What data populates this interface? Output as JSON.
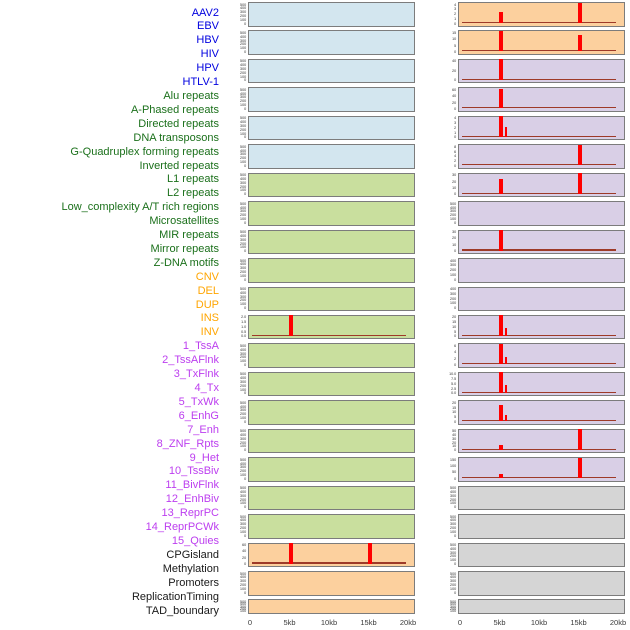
{
  "chart_data": {
    "type": "bar",
    "title": "",
    "xlabel": "",
    "ylabel": "",
    "x_range_kb": [
      0,
      20
    ],
    "x_axis": {
      "ticks": [
        {
          "label": "0",
          "kb": 0
        },
        {
          "label": "5kb",
          "kb": 5
        },
        {
          "label": "10kb",
          "kb": 10
        },
        {
          "label": "15kb",
          "kb": 15
        },
        {
          "label": "20kb",
          "kb": 20
        }
      ]
    },
    "categories": {
      "virus": {
        "label_color": "#0000df",
        "panel_color": "#d3e6ef"
      },
      "repeat": {
        "label_color": "#1b701b",
        "panel_color": "#c9df9e"
      },
      "structural_variant": {
        "label_color": "#ffa500",
        "panel_color": "#fcd09e"
      },
      "chromatin_state": {
        "label_color": "#bc3eef",
        "panel_color": "#d9cfe6"
      },
      "other": {
        "label_color": "#191919",
        "panel_color": "#d5d5d5"
      }
    },
    "style": {
      "spike_color": "#ff0000",
      "baseline_color": "#9e3a28",
      "panel_border_color": "#7c7c7c",
      "tick_text_color": "#3d3d3d"
    },
    "columns": [
      {
        "name": "left",
        "tracks": [
          {
            "label": "AAV2",
            "category": "virus",
            "y_ticks": [
              "500",
              "400",
              "300",
              "200",
              "100",
              "0"
            ],
            "y_max": 500,
            "peaks": []
          },
          {
            "label": "EBV",
            "category": "virus",
            "y_ticks": [
              "500",
              "400",
              "300",
              "200",
              "100",
              "0"
            ],
            "y_max": 500,
            "peaks": []
          },
          {
            "label": "HBV",
            "category": "virus",
            "y_ticks": [
              "500",
              "400",
              "300",
              "200",
              "100",
              "0"
            ],
            "y_max": 500,
            "peaks": []
          },
          {
            "label": "HIV",
            "category": "virus",
            "y_ticks": [
              "500",
              "400",
              "300",
              "200",
              "100",
              "0"
            ],
            "y_max": 500,
            "peaks": []
          },
          {
            "label": "HPV",
            "category": "virus",
            "y_ticks": [
              "500",
              "400",
              "300",
              "200",
              "100",
              "0"
            ],
            "y_max": 500,
            "peaks": []
          },
          {
            "label": "HTLV-1",
            "category": "virus",
            "y_ticks": [
              "500",
              "400",
              "300",
              "200",
              "100",
              "0"
            ],
            "y_max": 500,
            "peaks": []
          },
          {
            "label": "Alu repeats",
            "category": "repeat",
            "y_ticks": [
              "500",
              "400",
              "300",
              "200",
              "100",
              "0"
            ],
            "y_max": 500,
            "peaks": []
          },
          {
            "label": "A-Phased repeats",
            "category": "repeat",
            "y_ticks": [
              "500",
              "400",
              "300",
              "200",
              "100",
              "0"
            ],
            "y_max": 500,
            "peaks": []
          },
          {
            "label": "Directed repeats",
            "category": "repeat",
            "y_ticks": [
              "500",
              "400",
              "300",
              "200",
              "100",
              "0"
            ],
            "y_max": 500,
            "peaks": []
          },
          {
            "label": "DNA transposons",
            "category": "repeat",
            "y_ticks": [
              "500",
              "400",
              "300",
              "200",
              "100",
              "0"
            ],
            "y_max": 500,
            "peaks": []
          },
          {
            "label": "G-Quadruplex forming repeats",
            "category": "repeat",
            "y_ticks": [
              "500",
              "400",
              "300",
              "200",
              "100",
              "0"
            ],
            "y_max": 500,
            "peaks": []
          },
          {
            "label": "Inverted repeats",
            "category": "repeat",
            "y_ticks": [
              "2.0",
              "1.5",
              "1.0",
              "0.5",
              "0.0"
            ],
            "y_max": 2.05,
            "peaks": [
              {
                "kb": 5,
                "value": 2.05,
                "width": 4
              }
            ]
          },
          {
            "label": "L1 repeats",
            "category": "repeat",
            "y_ticks": [
              "500",
              "400",
              "300",
              "200",
              "100",
              "0"
            ],
            "y_max": 500,
            "peaks": []
          },
          {
            "label": "L2 repeats",
            "category": "repeat",
            "y_ticks": [
              "500",
              "400",
              "300",
              "200",
              "100",
              "0"
            ],
            "y_max": 500,
            "peaks": []
          },
          {
            "label": "Low_complexity A/T rich regions",
            "category": "repeat",
            "y_ticks": [
              "500",
              "400",
              "300",
              "200",
              "100",
              "0"
            ],
            "y_max": 500,
            "peaks": []
          },
          {
            "label": "Microsatellites",
            "category": "repeat",
            "y_ticks": [
              "500",
              "400",
              "300",
              "200",
              "100",
              "0"
            ],
            "y_max": 500,
            "peaks": []
          },
          {
            "label": "MIR repeats",
            "category": "repeat",
            "y_ticks": [
              "500",
              "400",
              "300",
              "200",
              "100",
              "0"
            ],
            "y_max": 500,
            "peaks": []
          },
          {
            "label": "Mirror repeats",
            "category": "repeat",
            "y_ticks": [
              "500",
              "400",
              "300",
              "200",
              "100",
              "0"
            ],
            "y_max": 500,
            "peaks": []
          },
          {
            "label": "Z-DNA motifs",
            "category": "repeat",
            "y_ticks": [
              "500",
              "400",
              "300",
              "200",
              "100",
              "0"
            ],
            "y_max": 500,
            "peaks": []
          },
          {
            "label": "CNV",
            "category": "structural_variant",
            "y_ticks": [
              "60",
              "40",
              "20",
              "0"
            ],
            "y_max": 65,
            "peaks": [
              {
                "kb": 5,
                "value": 65,
                "width": 4
              },
              {
                "kb": 15,
                "value": 65,
                "width": 4
              }
            ]
          },
          {
            "label": "DEL",
            "category": "structural_variant",
            "y_ticks": [
              "500",
              "400",
              "300",
              "200",
              "100",
              "0"
            ],
            "y_max": 500,
            "peaks": []
          },
          {
            "label": "DUP",
            "category": "structural_variant",
            "y_ticks": [
              "500",
              "400",
              "300",
              "200",
              "100"
            ],
            "y_max": 500,
            "peaks": []
          }
        ]
      },
      {
        "name": "right",
        "tracks": [
          {
            "label": "INS",
            "category": "structural_variant",
            "y_ticks": [
              "4",
              "3",
              "2",
              "1",
              "0"
            ],
            "y_max": 4.4,
            "peaks": [
              {
                "kb": 5,
                "value": 2.3,
                "width": 4
              },
              {
                "kb": 15,
                "value": 4.4,
                "width": 4
              }
            ]
          },
          {
            "label": "INV",
            "category": "structural_variant",
            "y_ticks": [
              "15",
              "10",
              "5",
              "0"
            ],
            "y_max": 16,
            "peaks": [
              {
                "kb": 5,
                "value": 16,
                "width": 4
              },
              {
                "kb": 15,
                "value": 13,
                "width": 4
              }
            ]
          },
          {
            "label": "1_TssA",
            "category": "chromatin_state",
            "y_ticks": [
              "40",
              "20",
              "0"
            ],
            "y_max": 46,
            "peaks": [
              {
                "kb": 5,
                "value": 46,
                "width": 4
              }
            ]
          },
          {
            "label": "2_TssAFlnk",
            "category": "chromatin_state",
            "y_ticks": [
              "60",
              "40",
              "20",
              "0"
            ],
            "y_max": 66,
            "peaks": [
              {
                "kb": 5,
                "value": 63,
                "width": 4
              }
            ]
          },
          {
            "label": "3_TxFlnk",
            "category": "chromatin_state",
            "y_ticks": [
              "4",
              "3",
              "2",
              "1",
              "0"
            ],
            "y_max": 4.4,
            "peaks": [
              {
                "kb": 5,
                "value": 4.4,
                "width": 4
              },
              {
                "kb": 5.7,
                "value": 2.1,
                "width": 2.5
              }
            ]
          },
          {
            "label": "4_Tx",
            "category": "chromatin_state",
            "y_ticks": [
              "8",
              "6",
              "4",
              "2",
              "0"
            ],
            "y_max": 8.5,
            "peaks": [
              {
                "kb": 15,
                "value": 8.5,
                "width": 4
              }
            ]
          },
          {
            "label": "5_TxWk",
            "category": "chromatin_state",
            "y_ticks": [
              "30",
              "20",
              "10",
              "0"
            ],
            "y_max": 32,
            "peaks": [
              {
                "kb": 5,
                "value": 23,
                "width": 4
              },
              {
                "kb": 15,
                "value": 32,
                "width": 4
              }
            ]
          },
          {
            "label": "6_EnhG",
            "category": "chromatin_state",
            "y_ticks": [
              "500",
              "400",
              "300",
              "200",
              "100",
              "0"
            ],
            "y_max": 500,
            "peaks": []
          },
          {
            "label": "7_Enh",
            "category": "chromatin_state",
            "y_ticks": [
              "30",
              "20",
              "10",
              "0"
            ],
            "y_max": 32,
            "peaks": [
              {
                "kb": 5,
                "value": 32,
                "width": 4
              }
            ]
          },
          {
            "label": "8_ZNF_Rpts",
            "category": "chromatin_state",
            "y_ticks": [
              "400",
              "300",
              "200",
              "100",
              "0"
            ],
            "y_max": 400,
            "peaks": []
          },
          {
            "label": "9_Het",
            "category": "chromatin_state",
            "y_ticks": [
              "400",
              "300",
              "200",
              "100",
              "0"
            ],
            "y_max": 400,
            "peaks": []
          },
          {
            "label": "10_TssBiv",
            "category": "chromatin_state",
            "y_ticks": [
              "20",
              "15",
              "10",
              "5",
              "0"
            ],
            "y_max": 21,
            "peaks": [
              {
                "kb": 5,
                "value": 21,
                "width": 4
              },
              {
                "kb": 5.7,
                "value": 8,
                "width": 2.5
              }
            ]
          },
          {
            "label": "11_BivFlnk",
            "category": "chromatin_state",
            "y_ticks": [
              "6",
              "4",
              "2",
              "0"
            ],
            "y_max": 6.3,
            "peaks": [
              {
                "kb": 5,
                "value": 6.3,
                "width": 4
              },
              {
                "kb": 5.7,
                "value": 2.2,
                "width": 2.5
              }
            ]
          },
          {
            "label": "12_EnhBiv",
            "category": "chromatin_state",
            "y_ticks": [
              "10.0",
              "7.5",
              "5.0",
              "2.5",
              "0.0"
            ],
            "y_max": 10.6,
            "peaks": [
              {
                "kb": 5,
                "value": 10.6,
                "width": 4
              },
              {
                "kb": 5.7,
                "value": 4,
                "width": 2.5
              }
            ]
          },
          {
            "label": "13_ReprPC",
            "category": "chromatin_state",
            "y_ticks": [
              "20",
              "15",
              "10",
              "5",
              "0"
            ],
            "y_max": 21,
            "peaks": [
              {
                "kb": 5,
                "value": 17,
                "width": 4
              },
              {
                "kb": 5.7,
                "value": 6,
                "width": 2.5
              }
            ]
          },
          {
            "label": "14_ReprPCWk",
            "category": "chromatin_state",
            "y_ticks": [
              "50",
              "40",
              "30",
              "20",
              "10",
              "0"
            ],
            "y_max": 53,
            "peaks": [
              {
                "kb": 5,
                "value": 13,
                "width": 4
              },
              {
                "kb": 15,
                "value": 53,
                "width": 4
              }
            ]
          },
          {
            "label": "15_Quies",
            "category": "chromatin_state",
            "y_ticks": [
              "150",
              "100",
              "50",
              "0"
            ],
            "y_max": 158,
            "peaks": [
              {
                "kb": 5,
                "value": 30,
                "width": 4
              },
              {
                "kb": 15,
                "value": 158,
                "width": 4
              }
            ]
          },
          {
            "label": "CPGisland",
            "category": "other",
            "y_ticks": [
              "500",
              "400",
              "300",
              "200",
              "100",
              "0"
            ],
            "y_max": 500,
            "peaks": []
          },
          {
            "label": "Methylation",
            "category": "other",
            "y_ticks": [
              "500",
              "400",
              "300",
              "200",
              "100",
              "0"
            ],
            "y_max": 500,
            "peaks": []
          },
          {
            "label": "Promoters",
            "category": "other",
            "y_ticks": [
              "500",
              "400",
              "300",
              "200",
              "100",
              "0"
            ],
            "y_max": 500,
            "peaks": []
          },
          {
            "label": "ReplicationTiming",
            "category": "other",
            "y_ticks": [
              "500",
              "400",
              "300",
              "200",
              "100",
              "0"
            ],
            "y_max": 500,
            "peaks": []
          },
          {
            "label": "TAD_boundary",
            "category": "other",
            "y_ticks": [
              "500",
              "400",
              "300",
              "200",
              "100"
            ],
            "y_max": 500,
            "peaks": []
          }
        ]
      }
    ]
  }
}
